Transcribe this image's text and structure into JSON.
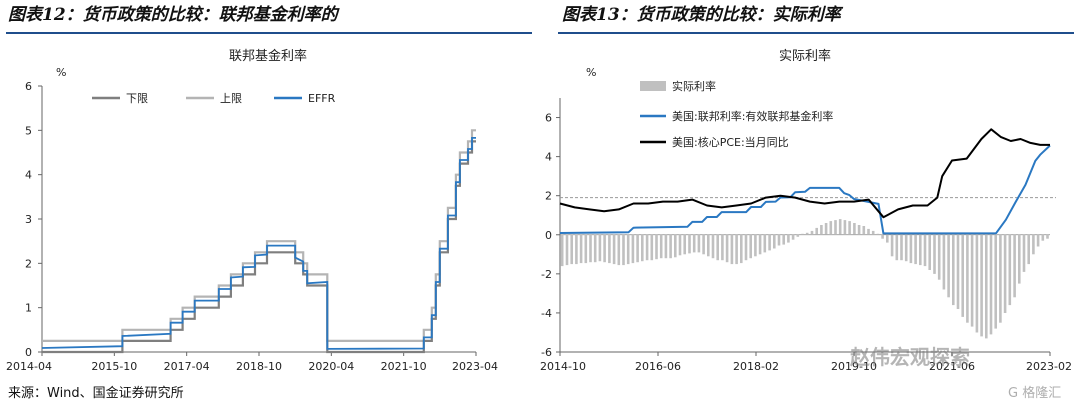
{
  "header": {
    "left_title": "图表12：货币政策的比较：联邦基金利率的",
    "right_title": "图表13：货币政策的比较：实际利率"
  },
  "footer": {
    "source": "来源：Wind、国金证券研究所",
    "watermark": "赵伟宏观探索",
    "watermark2": "G 格隆汇"
  },
  "colors": {
    "rule": "#1f4e8c",
    "lower": "#7f7f7f",
    "upper": "#b4b4b4",
    "effr": "#2a78c2",
    "real_rate_bar": "#c0c0c0",
    "core_pce": "#000000",
    "ref_line": "#999999"
  },
  "chart_data": [
    {
      "type": "line",
      "title": "联邦基金利率",
      "ylabel": "%",
      "ylim": [
        0,
        6
      ],
      "yticks": [
        "0",
        "1",
        "2",
        "3",
        "4",
        "5",
        "6"
      ],
      "xlim": [
        "2014-04",
        "2023-04"
      ],
      "xticks": [
        "2014-04",
        "2015-10",
        "2017-04",
        "2018-10",
        "2020-04",
        "2021-10",
        "2023-04"
      ],
      "legend_position": "top",
      "series": [
        {
          "name": "下限",
          "points": [
            [
              "2014-04",
              0
            ],
            [
              "2015-12",
              0
            ],
            [
              "2015-12",
              0.25
            ],
            [
              "2016-12",
              0.25
            ],
            [
              "2016-12",
              0.5
            ],
            [
              "2017-03",
              0.5
            ],
            [
              "2017-03",
              0.75
            ],
            [
              "2017-06",
              0.75
            ],
            [
              "2017-06",
              1.0
            ],
            [
              "2017-12",
              1.0
            ],
            [
              "2017-12",
              1.25
            ],
            [
              "2018-03",
              1.25
            ],
            [
              "2018-03",
              1.5
            ],
            [
              "2018-06",
              1.5
            ],
            [
              "2018-06",
              1.75
            ],
            [
              "2018-09",
              1.75
            ],
            [
              "2018-09",
              2.0
            ],
            [
              "2018-12",
              2.0
            ],
            [
              "2018-12",
              2.25
            ],
            [
              "2019-07",
              2.25
            ],
            [
              "2019-07",
              2.0
            ],
            [
              "2019-09",
              2.0
            ],
            [
              "2019-09",
              1.75
            ],
            [
              "2019-10",
              1.75
            ],
            [
              "2019-10",
              1.5
            ],
            [
              "2020-03",
              1.5
            ],
            [
              "2020-03",
              0
            ],
            [
              "2022-03",
              0
            ],
            [
              "2022-03",
              0.25
            ],
            [
              "2022-05",
              0.25
            ],
            [
              "2022-05",
              0.75
            ],
            [
              "2022-06",
              0.75
            ],
            [
              "2022-06",
              1.5
            ],
            [
              "2022-07",
              1.5
            ],
            [
              "2022-07",
              2.25
            ],
            [
              "2022-09",
              2.25
            ],
            [
              "2022-09",
              3.0
            ],
            [
              "2022-11",
              3.0
            ],
            [
              "2022-11",
              3.75
            ],
            [
              "2022-12",
              3.75
            ],
            [
              "2022-12",
              4.25
            ],
            [
              "2023-02",
              4.25
            ],
            [
              "2023-02",
              4.5
            ],
            [
              "2023-03",
              4.5
            ],
            [
              "2023-03",
              4.75
            ],
            [
              "2023-04",
              4.75
            ]
          ]
        },
        {
          "name": "上限",
          "points": [
            [
              "2014-04",
              0.25
            ],
            [
              "2015-12",
              0.25
            ],
            [
              "2015-12",
              0.5
            ],
            [
              "2016-12",
              0.5
            ],
            [
              "2016-12",
              0.75
            ],
            [
              "2017-03",
              0.75
            ],
            [
              "2017-03",
              1.0
            ],
            [
              "2017-06",
              1.0
            ],
            [
              "2017-06",
              1.25
            ],
            [
              "2017-12",
              1.25
            ],
            [
              "2017-12",
              1.5
            ],
            [
              "2018-03",
              1.5
            ],
            [
              "2018-03",
              1.75
            ],
            [
              "2018-06",
              1.75
            ],
            [
              "2018-06",
              2.0
            ],
            [
              "2018-09",
              2.0
            ],
            [
              "2018-09",
              2.25
            ],
            [
              "2018-12",
              2.25
            ],
            [
              "2018-12",
              2.5
            ],
            [
              "2019-07",
              2.5
            ],
            [
              "2019-07",
              2.25
            ],
            [
              "2019-09",
              2.25
            ],
            [
              "2019-09",
              2.0
            ],
            [
              "2019-10",
              2.0
            ],
            [
              "2019-10",
              1.75
            ],
            [
              "2020-03",
              1.75
            ],
            [
              "2020-03",
              0.25
            ],
            [
              "2022-03",
              0.25
            ],
            [
              "2022-03",
              0.5
            ],
            [
              "2022-05",
              0.5
            ],
            [
              "2022-05",
              1.0
            ],
            [
              "2022-06",
              1.0
            ],
            [
              "2022-06",
              1.75
            ],
            [
              "2022-07",
              1.75
            ],
            [
              "2022-07",
              2.5
            ],
            [
              "2022-09",
              2.5
            ],
            [
              "2022-09",
              3.25
            ],
            [
              "2022-11",
              3.25
            ],
            [
              "2022-11",
              4.0
            ],
            [
              "2022-12",
              4.0
            ],
            [
              "2022-12",
              4.5
            ],
            [
              "2023-02",
              4.5
            ],
            [
              "2023-02",
              4.75
            ],
            [
              "2023-03",
              4.75
            ],
            [
              "2023-03",
              5.0
            ],
            [
              "2023-04",
              5.0
            ]
          ]
        },
        {
          "name": "EFFR",
          "points": [
            [
              "2014-04",
              0.09
            ],
            [
              "2015-12",
              0.13
            ],
            [
              "2015-12",
              0.36
            ],
            [
              "2016-12",
              0.41
            ],
            [
              "2016-12",
              0.66
            ],
            [
              "2017-03",
              0.66
            ],
            [
              "2017-03",
              0.91
            ],
            [
              "2017-06",
              0.91
            ],
            [
              "2017-06",
              1.16
            ],
            [
              "2017-12",
              1.16
            ],
            [
              "2017-12",
              1.42
            ],
            [
              "2018-03",
              1.42
            ],
            [
              "2018-03",
              1.68
            ],
            [
              "2018-06",
              1.7
            ],
            [
              "2018-06",
              1.91
            ],
            [
              "2018-09",
              1.92
            ],
            [
              "2018-09",
              2.18
            ],
            [
              "2018-12",
              2.2
            ],
            [
              "2018-12",
              2.4
            ],
            [
              "2019-07",
              2.4
            ],
            [
              "2019-07",
              2.13
            ],
            [
              "2019-09",
              2.04
            ],
            [
              "2019-09",
              1.83
            ],
            [
              "2019-10",
              1.83
            ],
            [
              "2019-10",
              1.55
            ],
            [
              "2020-03",
              1.58
            ],
            [
              "2020-03",
              0.07
            ],
            [
              "2022-03",
              0.08
            ],
            [
              "2022-03",
              0.33
            ],
            [
              "2022-05",
              0.33
            ],
            [
              "2022-05",
              0.83
            ],
            [
              "2022-06",
              0.83
            ],
            [
              "2022-06",
              1.58
            ],
            [
              "2022-07",
              1.58
            ],
            [
              "2022-07",
              2.33
            ],
            [
              "2022-09",
              2.33
            ],
            [
              "2022-09",
              3.08
            ],
            [
              "2022-11",
              3.08
            ],
            [
              "2022-11",
              3.83
            ],
            [
              "2022-12",
              3.83
            ],
            [
              "2022-12",
              4.33
            ],
            [
              "2023-02",
              4.33
            ],
            [
              "2023-02",
              4.58
            ],
            [
              "2023-03",
              4.58
            ],
            [
              "2023-03",
              4.83
            ],
            [
              "2023-04",
              4.83
            ]
          ]
        }
      ]
    },
    {
      "type": "bar+line",
      "title": "实际利率",
      "ylabel": "%",
      "ylim": [
        -6,
        7
      ],
      "yticks": [
        "-6",
        "-4",
        "-2",
        "0",
        "2",
        "4",
        "6"
      ],
      "xlim": [
        "2014-10",
        "2023-02"
      ],
      "xticks": [
        "2014-10",
        "2016-06",
        "2018-02",
        "2019-10",
        "2021-06",
        "2023-02"
      ],
      "reference_line": 1.9,
      "legend_position": "top-left",
      "bar_series": {
        "name": "实际利率",
        "values": [
          -1.6,
          -1.55,
          -1.5,
          -1.5,
          -1.45,
          -1.45,
          -1.4,
          -1.4,
          -1.35,
          -1.4,
          -1.45,
          -1.5,
          -1.55,
          -1.55,
          -1.5,
          -1.45,
          -1.4,
          -1.35,
          -1.3,
          -1.3,
          -1.25,
          -1.2,
          -1.2,
          -1.2,
          -1.15,
          -1.05,
          -1.0,
          -0.95,
          -0.9,
          -0.9,
          -1.0,
          -1.1,
          -1.2,
          -1.3,
          -1.3,
          -1.4,
          -1.5,
          -1.5,
          -1.45,
          -1.3,
          -1.2,
          -1.1,
          -1.0,
          -0.9,
          -0.8,
          -0.7,
          -0.55,
          -0.5,
          -0.4,
          -0.25,
          -0.1,
          0.05,
          0.1,
          0.2,
          0.35,
          0.5,
          0.6,
          0.7,
          0.75,
          0.8,
          0.75,
          0.7,
          0.6,
          0.5,
          0.45,
          0.3,
          0.2,
          0.05,
          -0.2,
          -0.4,
          -1.1,
          -1.3,
          -1.3,
          -1.35,
          -1.45,
          -1.5,
          -1.55,
          -1.6,
          -1.8,
          -2.0,
          -2.3,
          -2.8,
          -3.2,
          -3.6,
          -3.8,
          -4.2,
          -4.5,
          -4.7,
          -5.0,
          -5.2,
          -5.3,
          -5.1,
          -4.8,
          -4.5,
          -4.0,
          -3.6,
          -3.2,
          -2.5,
          -1.9,
          -1.5,
          -1.0,
          -0.6,
          -0.3,
          -0.2
        ]
      },
      "line_series": [
        {
          "name": "美国:联邦利率:有效联邦基金利率",
          "x": [
            "2014-10",
            "2015-12",
            "2016-01",
            "2016-12",
            "2017-01",
            "2017-03",
            "2017-04",
            "2017-06",
            "2017-07",
            "2017-12",
            "2018-01",
            "2018-03",
            "2018-04",
            "2018-06",
            "2018-07",
            "2018-09",
            "2018-10",
            "2018-12",
            "2019-01",
            "2019-07",
            "2019-08",
            "2019-09",
            "2019-10",
            "2020-03",
            "2020-04",
            "2022-03",
            "2022-05",
            "2022-07",
            "2022-09",
            "2022-11",
            "2022-12",
            "2023-02"
          ],
          "values": [
            0.09,
            0.13,
            0.36,
            0.41,
            0.66,
            0.66,
            0.91,
            0.91,
            1.16,
            1.16,
            1.42,
            1.42,
            1.68,
            1.7,
            1.91,
            1.92,
            2.18,
            2.2,
            2.4,
            2.4,
            2.13,
            2.04,
            1.83,
            1.58,
            0.07,
            0.08,
            0.77,
            1.68,
            2.56,
            3.78,
            4.1,
            4.57
          ]
        },
        {
          "name": "美国:核心PCE:当月同比",
          "x": [
            "2014-10",
            "2015-01",
            "2015-04",
            "2015-07",
            "2015-10",
            "2016-01",
            "2016-04",
            "2016-07",
            "2016-10",
            "2017-01",
            "2017-04",
            "2017-07",
            "2017-10",
            "2018-01",
            "2018-04",
            "2018-07",
            "2018-10",
            "2019-01",
            "2019-04",
            "2019-07",
            "2019-10",
            "2020-01",
            "2020-04",
            "2020-07",
            "2020-10",
            "2021-01",
            "2021-03",
            "2021-04",
            "2021-06",
            "2021-09",
            "2021-12",
            "2022-02",
            "2022-04",
            "2022-06",
            "2022-08",
            "2022-10",
            "2022-12",
            "2023-02"
          ],
          "values": [
            1.6,
            1.4,
            1.3,
            1.2,
            1.3,
            1.6,
            1.6,
            1.7,
            1.7,
            1.8,
            1.5,
            1.4,
            1.5,
            1.6,
            1.9,
            2.0,
            1.9,
            1.7,
            1.6,
            1.7,
            1.7,
            1.8,
            0.9,
            1.3,
            1.5,
            1.5,
            1.9,
            3.0,
            3.8,
            3.9,
            4.9,
            5.4,
            5.0,
            4.8,
            4.9,
            4.7,
            4.6,
            4.6
          ]
        }
      ]
    }
  ]
}
